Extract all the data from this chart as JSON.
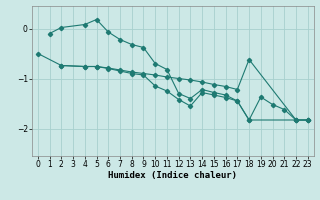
{
  "xlabel": "Humidex (Indice chaleur)",
  "bg_color": "#cce8e6",
  "grid_color": "#a8d0ce",
  "line_color": "#1e7a72",
  "xlim": [
    -0.5,
    23.5
  ],
  "ylim": [
    -2.55,
    0.45
  ],
  "yticks": [
    0,
    -1,
    -2
  ],
  "xticks": [
    0,
    1,
    2,
    3,
    4,
    5,
    6,
    7,
    8,
    9,
    10,
    11,
    12,
    13,
    14,
    15,
    16,
    17,
    18,
    19,
    20,
    21,
    22,
    23
  ],
  "line1_x": [
    1,
    2,
    4,
    5,
    6,
    7,
    8,
    9,
    10,
    11,
    12,
    13,
    14,
    15,
    16,
    17,
    18,
    22,
    23
  ],
  "line1_y": [
    -0.1,
    0.02,
    0.08,
    0.18,
    -0.07,
    -0.22,
    -0.32,
    -0.38,
    -0.7,
    -0.82,
    -1.3,
    -1.4,
    -1.22,
    -1.28,
    -1.33,
    -1.45,
    -1.83,
    -1.83,
    -1.83
  ],
  "line2_x": [
    0,
    2,
    4,
    5,
    6,
    7,
    8,
    9,
    10,
    11,
    12,
    13,
    14,
    15,
    16,
    17,
    18,
    22,
    23
  ],
  "line2_y": [
    -0.5,
    -0.74,
    -0.76,
    -0.76,
    -0.79,
    -0.83,
    -0.87,
    -0.9,
    -0.93,
    -0.97,
    -1.0,
    -1.03,
    -1.07,
    -1.12,
    -1.16,
    -1.22,
    -0.62,
    -1.83,
    -1.83
  ],
  "line3_x": [
    2,
    4,
    5,
    6,
    7,
    8,
    9,
    10,
    11,
    12,
    13,
    14,
    15,
    16,
    17,
    18,
    19,
    20,
    21,
    22,
    23
  ],
  "line3_y": [
    -0.74,
    -0.76,
    -0.76,
    -0.8,
    -0.85,
    -0.9,
    -0.93,
    -1.15,
    -1.25,
    -1.42,
    -1.55,
    -1.28,
    -1.33,
    -1.38,
    -1.45,
    -1.83,
    -1.37,
    -1.52,
    -1.62,
    -1.83,
    -1.83
  ]
}
